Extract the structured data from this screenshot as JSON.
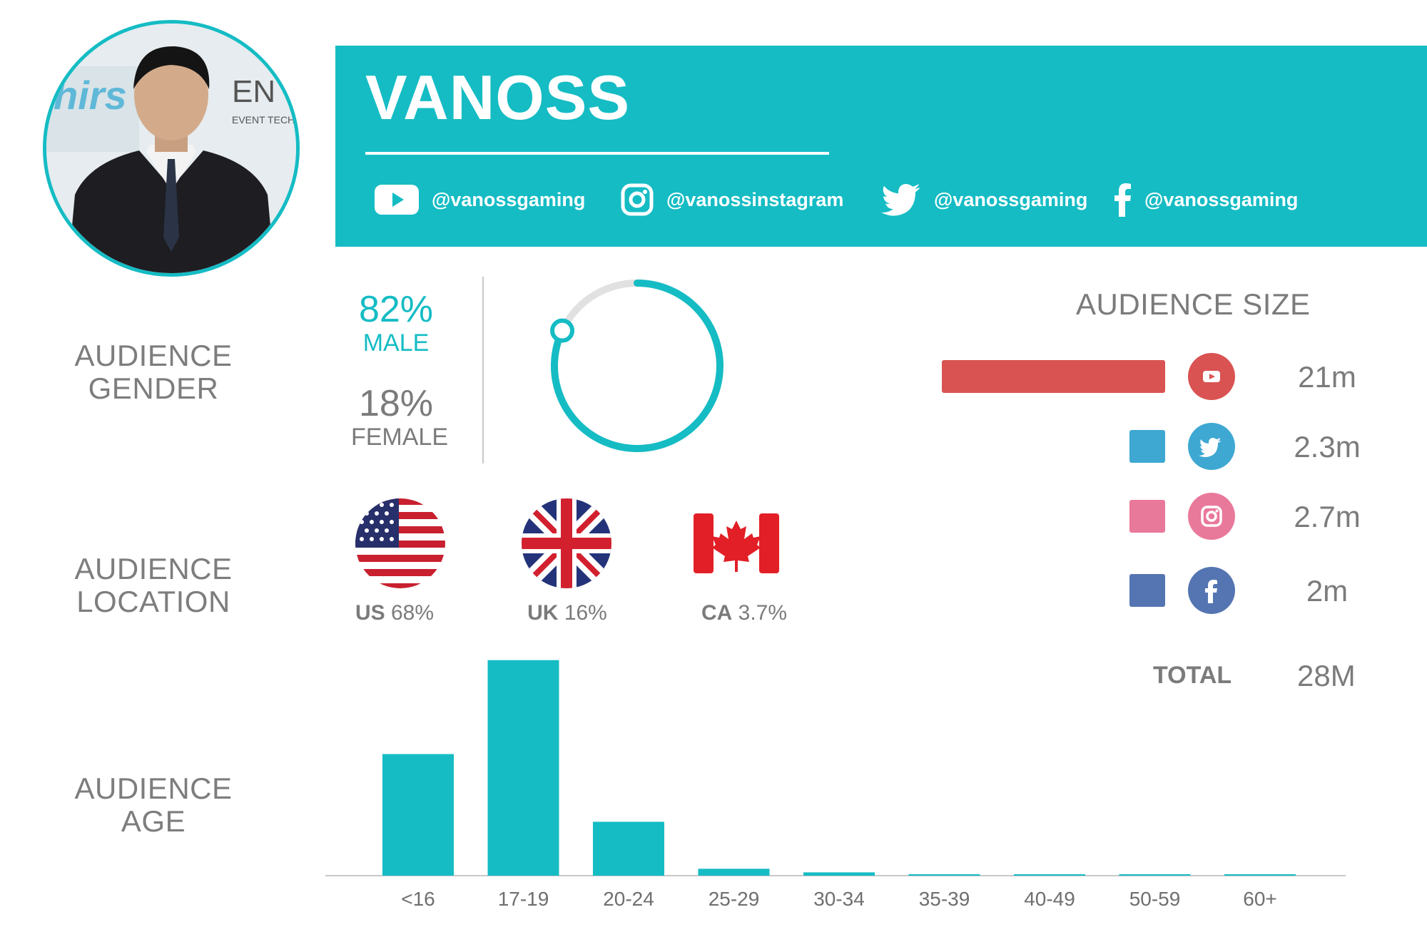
{
  "profile": {
    "name": "VANOSS",
    "handles": [
      {
        "platform": "youtube",
        "icon": "youtube-icon",
        "text": "@vanossgaming"
      },
      {
        "platform": "instagram",
        "icon": "instagram-icon",
        "text": "@vanossinstagram"
      },
      {
        "platform": "twitter",
        "icon": "twitter-icon",
        "text": "@vanossgaming"
      },
      {
        "platform": "facebook",
        "icon": "facebook-icon",
        "text": "@vanossgaming"
      }
    ]
  },
  "labels": {
    "gender": [
      "AUDIENCE",
      "GENDER"
    ],
    "location": [
      "AUDIENCE",
      "LOCATION"
    ],
    "age": [
      "AUDIENCE",
      "AGE"
    ]
  },
  "colors": {
    "accent": "#15bcc4",
    "youtube": "#d95352",
    "twitter": "#3ea8d2",
    "instagram": "#e9799b",
    "facebook": "#5475b1",
    "ring_track": "#e1e1e1",
    "text": "#7b7b7b"
  },
  "gender": {
    "male": {
      "pct": "82%",
      "label": "MALE",
      "value": 82
    },
    "female": {
      "pct": "18%",
      "label": "FEMALE",
      "value": 18
    }
  },
  "location": [
    {
      "code": "US",
      "pct": "68%",
      "flag": "us-flag"
    },
    {
      "code": "UK",
      "pct": "16%",
      "flag": "uk-flag"
    },
    {
      "code": "CA",
      "pct": "3.7%",
      "flag": "canada-flag"
    }
  ],
  "audience_size": {
    "title": "AUDIENCE SIZE",
    "total_label": "TOTAL",
    "total_value": "28M"
  },
  "chart_data": [
    {
      "type": "bar",
      "title": "AUDIENCE SIZE",
      "orientation": "horizontal",
      "categories": [
        "youtube",
        "twitter",
        "instagram",
        "facebook"
      ],
      "values": [
        21,
        2.3,
        2.7,
        2
      ],
      "value_labels": [
        "21m",
        "2.3m",
        "2.7m",
        "2m"
      ],
      "unit": "m"
    },
    {
      "type": "bar",
      "title": "AUDIENCE AGE",
      "categories": [
        "<16",
        "17-19",
        "20-24",
        "25-29",
        "30-34",
        "35-39",
        "40-49",
        "50-59",
        "60+"
      ],
      "values": [
        44,
        78,
        19.5,
        2.5,
        1.2,
        0.4,
        0.3,
        0.2,
        0.2
      ],
      "unit": "%",
      "grid": false
    }
  ]
}
